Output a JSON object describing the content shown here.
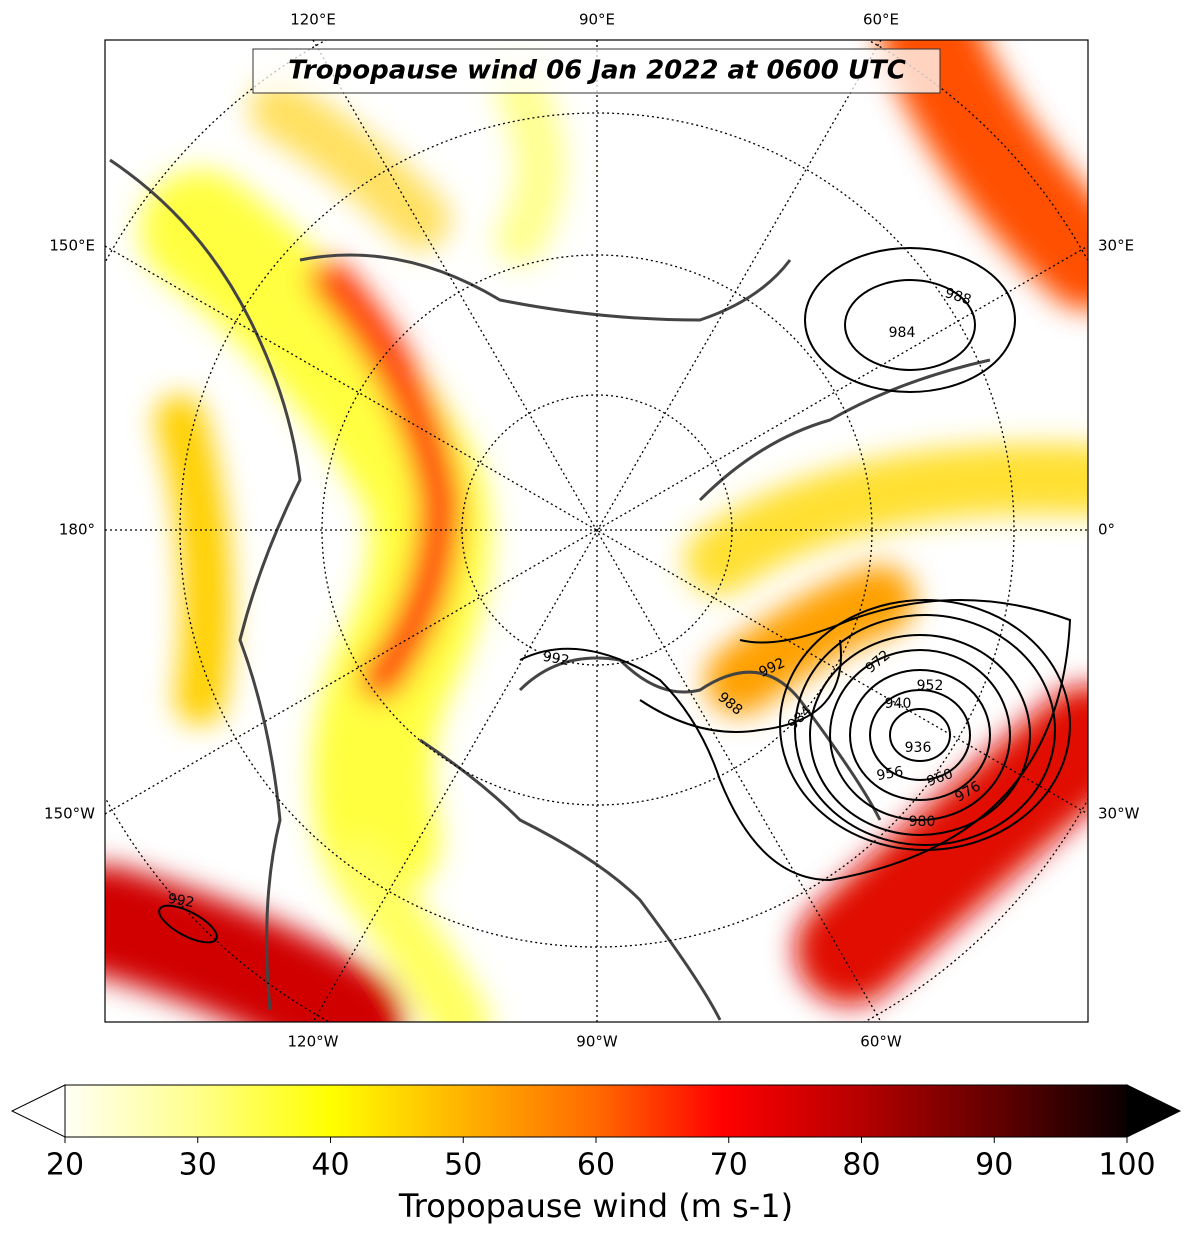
{
  "map": {
    "title": "Tropopause wind 06 Jan 2022 at 0600 UTC",
    "lon_labels_top": [
      "120°E",
      "90°E",
      "60°E"
    ],
    "lon_labels_left": [
      "150°E",
      "180°",
      "150°W"
    ],
    "lon_labels_right": [
      "30°E",
      "0°",
      "30°W"
    ],
    "lon_labels_bottom": [
      "120°W",
      "90°W",
      "60°W"
    ],
    "contour_labels": [
      988,
      984,
      992,
      992,
      988,
      984,
      972,
      952,
      940,
      936,
      956,
      960,
      976,
      980,
      992
    ]
  },
  "colorbar": {
    "lim": [
      20,
      100
    ],
    "ticks": [
      20,
      30,
      40,
      50,
      60,
      70,
      80,
      90,
      100
    ],
    "label": "Tropopause wind (m s-1)"
  }
}
